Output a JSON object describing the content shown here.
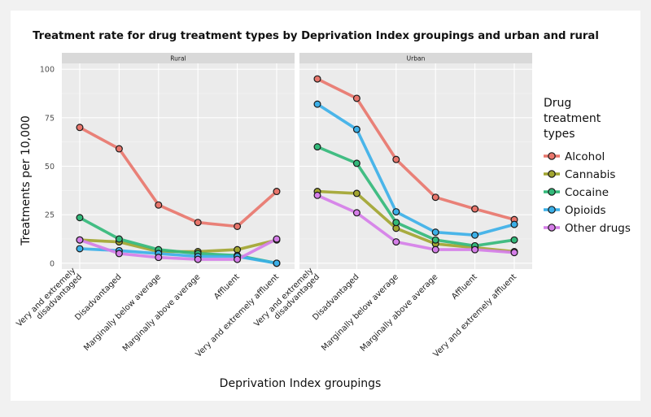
{
  "chart_data": {
    "type": "line",
    "title": "Treatment rate for drug treatment types by Deprivation Index groupings and urban and rural",
    "xlabel": "Deprivation Index groupings",
    "ylabel": "Treatments per 10,000",
    "ylim": [
      -3,
      103
    ],
    "yticks": [
      0,
      25,
      50,
      75,
      100
    ],
    "grid": true,
    "legend_position": "right",
    "legend_title": "Drug treatment types",
    "legend_title_lines": [
      "Drug",
      "treatment",
      "types"
    ],
    "categories": [
      "Very and extremely disadvantaged",
      "Disadvantaged",
      "Marginally below average",
      "Marginally above average",
      "Affluent",
      "Very and extremely affluent"
    ],
    "category_label_lines": [
      [
        "Very and extremely",
        "disadvantaged"
      ],
      [
        "Disadvantaged"
      ],
      [
        "Marginally below average"
      ],
      [
        "Marginally above average"
      ],
      [
        "Affluent"
      ],
      [
        "Very and extremely affluent"
      ]
    ],
    "panels": [
      {
        "name": "Rural",
        "series": [
          {
            "name": "Alcohol",
            "color": "#e8766c",
            "values": [
              70,
              59,
              30,
              21,
              19,
              37
            ]
          },
          {
            "name": "Cannabis",
            "color": "#a2a530",
            "values": [
              12,
              11,
              6,
              6,
              7,
              12
            ]
          },
          {
            "name": "Cocaine",
            "color": "#33b97a",
            "values": [
              23.5,
              12.5,
              7,
              5,
              4,
              0
            ]
          },
          {
            "name": "Opioids",
            "color": "#3cb0e8",
            "values": [
              7.5,
              6.5,
              5,
              3.5,
              3.5,
              0
            ]
          },
          {
            "name": "Other drugs",
            "color": "#d57ee8",
            "values": [
              12,
              5,
              3,
              2,
              2,
              12.5
            ]
          }
        ]
      },
      {
        "name": "Urban",
        "series": [
          {
            "name": "Alcohol",
            "color": "#e8766c",
            "values": [
              95,
              85,
              53.5,
              34,
              28,
              22.5
            ]
          },
          {
            "name": "Cannabis",
            "color": "#a2a530",
            "values": [
              37,
              36,
              18,
              10,
              8,
              6
            ]
          },
          {
            "name": "Cocaine",
            "color": "#33b97a",
            "values": [
              60,
              51.5,
              21,
              12,
              9,
              12
            ]
          },
          {
            "name": "Opioids",
            "color": "#3cb0e8",
            "values": [
              82,
              69,
              26.5,
              16,
              14.5,
              20
            ]
          },
          {
            "name": "Other drugs",
            "color": "#d57ee8",
            "values": [
              35,
              26,
              11,
              7,
              7,
              5.5
            ]
          }
        ]
      }
    ]
  }
}
